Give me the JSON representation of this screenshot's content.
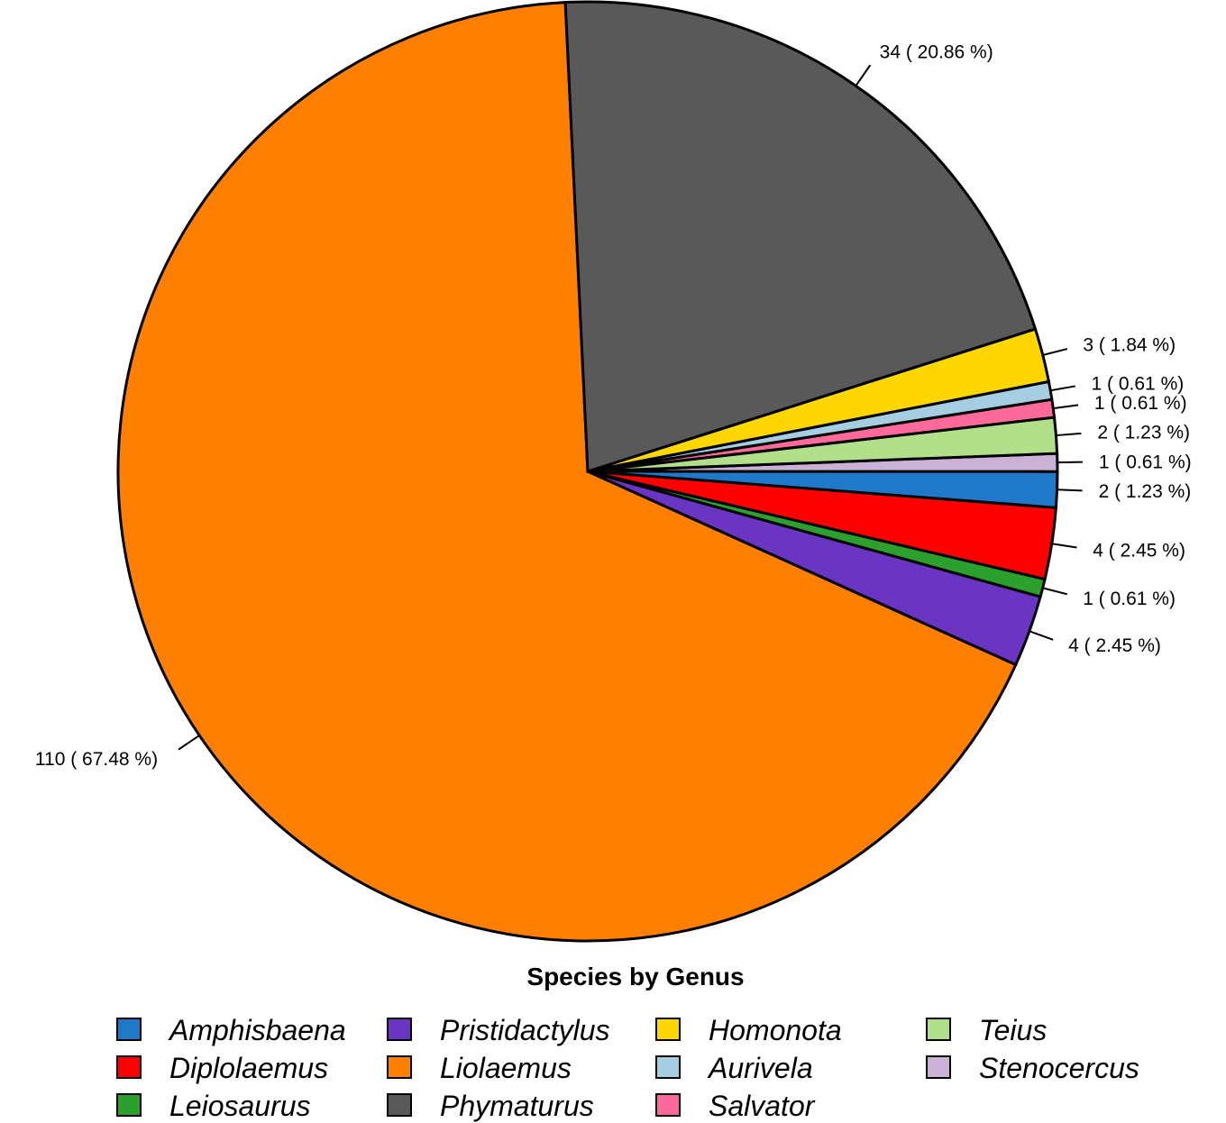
{
  "chart_data": {
    "type": "pie",
    "title": "",
    "legend_title": "Species by Genus",
    "legend_position": "bottom",
    "slices": [
      {
        "name": "Liolaemus",
        "value": 110,
        "label": "110  ( 67.48 %)",
        "color": "#FF7F00"
      },
      {
        "name": "Pristidactylus",
        "value": 4,
        "label": "4  ( 2.45 %)",
        "color": "#6A35C2"
      },
      {
        "name": "Leiosaurus",
        "value": 1,
        "label": "1  ( 0.61 %)",
        "color": "#2CA02C"
      },
      {
        "name": "Diplolaemus",
        "value": 4,
        "label": "4  ( 2.45 %)",
        "color": "#FF0000"
      },
      {
        "name": "Amphisbaena",
        "value": 2,
        "label": "2  ( 1.23 %)",
        "color": "#1F78C8"
      },
      {
        "name": "Stenocercus",
        "value": 1,
        "label": "1  ( 0.61 %)",
        "color": "#CAB2D6"
      },
      {
        "name": "Teius",
        "value": 2,
        "label": "2  ( 1.23 %)",
        "color": "#B2DF8A"
      },
      {
        "name": "Salvator",
        "value": 1,
        "label": "1  ( 0.61 %)",
        "color": "#FB6A9A"
      },
      {
        "name": "Aurivela",
        "value": 1,
        "label": "1  ( 0.61 %)",
        "color": "#A6CEE3"
      },
      {
        "name": "Homonota",
        "value": 3,
        "label": "3  ( 1.84 %)",
        "color": "#FFD700"
      },
      {
        "name": "Phymaturus",
        "value": 34,
        "label": "34  ( 20.86 %)",
        "color": "#595959"
      }
    ],
    "legend": [
      [
        "Amphisbaena",
        "Diplolaemus",
        "Leiosaurus"
      ],
      [
        "Pristidactylus",
        "Liolaemus",
        "Phymaturus"
      ],
      [
        "Homonota",
        "Aurivela",
        "Salvator"
      ],
      [
        "Teius",
        "Stenocercus"
      ]
    ]
  }
}
